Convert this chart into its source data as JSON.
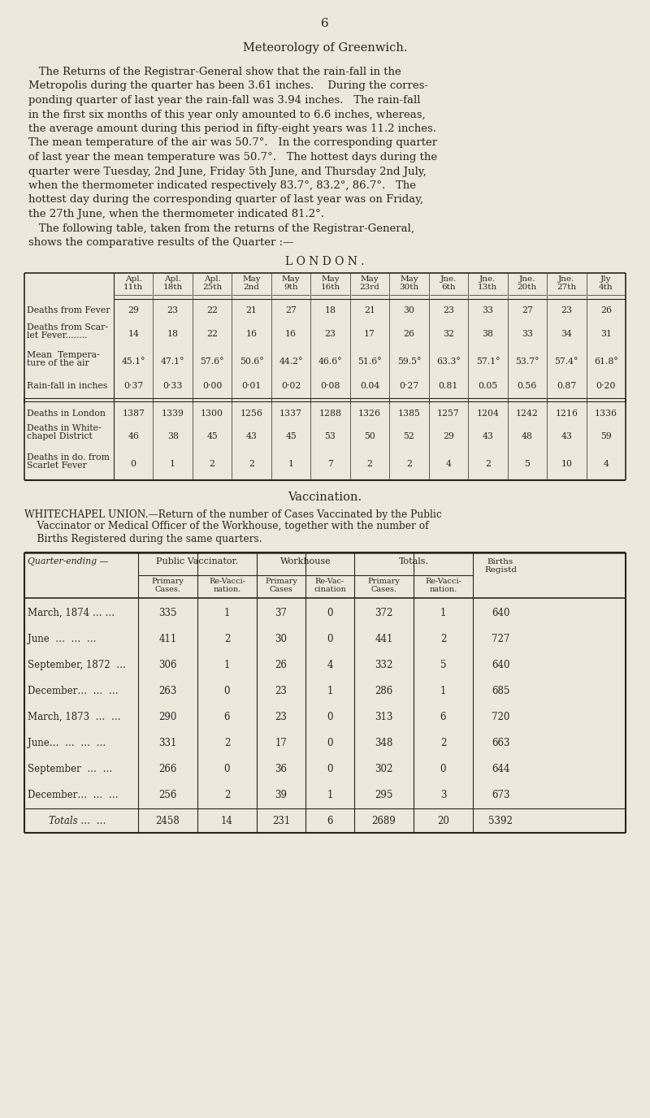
{
  "page_number": "6",
  "title": "Meteorology of Greenwich.",
  "body_lines": [
    "   The Returns of the Registrar-General show that the rain-fall in the",
    "Metropolis during the quarter has been 3.61 inches.    During the corres-",
    "ponding quarter of last year the rain-fall was 3.94 inches.   The rain-fall",
    "in the first six months of this year only amounted to 6.6 inches, whereas,",
    "the average amount during this period in fifty-eight years was 11.2 inches.",
    "The mean temperature of the air was 50.7°.   In the corresponding quarter",
    "of last year the mean temperature was 50.7°.   The hottest days during the",
    "quarter were Tuesday, 2nd June, Friday 5th June, and Thursday 2nd July,",
    "when the thermometer indicated respectively 83.7°, 83.2°, 86.7°.   The",
    "hottest day during the corresponding quarter of last year was on Friday,",
    "the 27th June, when the thermometer indicated 81.2°.",
    "   The following table, taken from the returns of the Registrar-General,",
    "shows the comparative results of the Quarter :—"
  ],
  "london_label": "L O N D O N .",
  "london_col_headers": [
    "Apl.\n11th",
    "Apl.\n18th",
    "Apl.\n25th",
    "May\n2nd",
    "May\n9th",
    "May\n16th",
    "May\n23rd",
    "May\n30th",
    "Jne.\n6th",
    "Jne.\n13th",
    "Jne.\n20th",
    "Jne.\n27th",
    "Jly\n4th"
  ],
  "row1_label": "Deaths from Fever",
  "row1_data": [
    29,
    23,
    22,
    21,
    27,
    18,
    21,
    30,
    23,
    33,
    27,
    23,
    26
  ],
  "row2_label_1": "Deaths from Scar-",
  "row2_label_2": "let Fever........",
  "row2_data": [
    14,
    18,
    22,
    16,
    16,
    23,
    17,
    26,
    32,
    38,
    33,
    34,
    31
  ],
  "row3_label_1": "Mean  Tempera-",
  "row3_label_2": "ture of the air",
  "row3_data": [
    "45.1°",
    "47.1°",
    "57.6°",
    "50.6°",
    "44.2°",
    "46.6°",
    "51.6°",
    "59.5°",
    "63.3°",
    "57.1°",
    "53.7°",
    "57.4°",
    "61.8°"
  ],
  "row4_label": "Rain-fall in inches",
  "row4_data": [
    "0·37",
    "0·33",
    "0·00",
    "0·01",
    "0·02",
    "0·08",
    "0.04",
    "0·27",
    "0.81",
    "0.05",
    "0.56",
    "0.87",
    "0·20"
  ],
  "row5_label": "Deaths in London",
  "row5_data": [
    1387,
    1339,
    1300,
    1256,
    1337,
    1288,
    1326,
    1385,
    1257,
    1204,
    1242,
    1216,
    1336
  ],
  "row6_label_1": "Deaths in White-",
  "row6_label_2": "chapel District",
  "row6_data": [
    46,
    38,
    45,
    43,
    45,
    53,
    50,
    52,
    29,
    43,
    48,
    43,
    59
  ],
  "row7_label_1": "Deaths in do. from",
  "row7_label_2": "Scarlet Fever",
  "row7_data": [
    0,
    1,
    2,
    2,
    1,
    7,
    2,
    2,
    4,
    2,
    5,
    10,
    4
  ],
  "vacc_title": "Vaccination.",
  "wc_lines": [
    "WHITECHAPEL UNION.—Return of the number of Cases Vaccinated by the Public",
    "    Vaccinator or Medical Officer of the Workhouse, together with the number of",
    "    Births Registered during the same quarters."
  ],
  "vacc_rows": [
    [
      "March, 1874 … …",
      335,
      1,
      37,
      0,
      372,
      1,
      640
    ],
    [
      "June  …  …  …",
      411,
      2,
      30,
      0,
      441,
      2,
      727
    ],
    [
      "September, 1872  …",
      306,
      1,
      26,
      4,
      332,
      5,
      640
    ],
    [
      "December…  …  …",
      263,
      0,
      23,
      1,
      286,
      1,
      685
    ],
    [
      "March, 1873  …  …",
      290,
      6,
      23,
      0,
      313,
      6,
      720
    ],
    [
      "June…  …  …  …",
      331,
      2,
      17,
      0,
      348,
      2,
      663
    ],
    [
      "September  …  …",
      266,
      0,
      36,
      0,
      302,
      0,
      644
    ],
    [
      "December…  …  …",
      256,
      2,
      39,
      1,
      295,
      3,
      673
    ]
  ],
  "vacc_totals": [
    "Totals …  …",
    2458,
    14,
    231,
    6,
    2689,
    20,
    5392
  ],
  "bg_color": "#ede8dc",
  "text_color": "#2a2520",
  "line_color": "#2a2520"
}
